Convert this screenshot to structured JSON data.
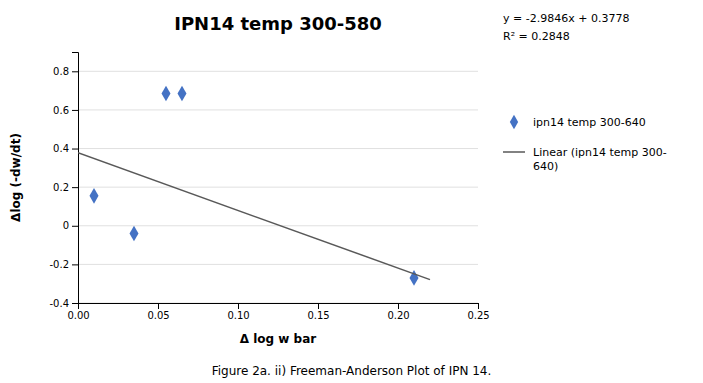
{
  "chart_data": {
    "type": "scatter",
    "title": "IPN14 temp 300-580",
    "xlabel": "Δ log w bar",
    "ylabel": "Δlog (-dw/dt)",
    "series": [
      {
        "name": "ipn14 temp 300-640",
        "type": "scatter",
        "color": "#4472C4",
        "marker": "diamond",
        "x": [
          0.01,
          0.035,
          0.055,
          0.065,
          0.21
        ],
        "values": [
          0.155,
          -0.04,
          0.685,
          0.685,
          -0.27
        ]
      },
      {
        "name": "Linear (ipn14 temp 300-\n640)",
        "type": "line",
        "color": "#595959",
        "line_style": "solid",
        "x": [
          0,
          0.22
        ],
        "values": [
          0.3778,
          -0.278812
        ]
      }
    ],
    "annotations": [
      "y = -2.9846x + 0.3778",
      "R² = 0.2848"
    ],
    "caption": "Figure 2a. ii) Freeman-Anderson Plot of IPN 14.",
    "xlim": [
      0,
      0.25
    ],
    "ylim": [
      -0.4,
      0.9
    ],
    "xticks": [
      {
        "value": 0,
        "label": "0.00"
      },
      {
        "value": 0.05,
        "label": "0.05"
      },
      {
        "value": 0.1,
        "label": "0.10"
      },
      {
        "value": 0.15,
        "label": "0.15"
      },
      {
        "value": 0.2,
        "label": "0.20"
      },
      {
        "value": 0.25,
        "label": "0.25"
      }
    ],
    "yticks": [
      -0.4,
      -0.2,
      0,
      0.2,
      0.4,
      0.6,
      0.8
    ],
    "grid": true,
    "legend": "right"
  }
}
